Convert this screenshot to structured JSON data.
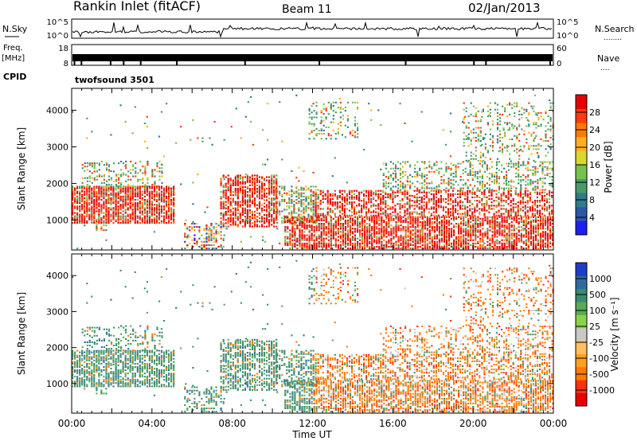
{
  "header": {
    "station": "Rankin Inlet (fitACF)",
    "beam": "Beam 11",
    "date": "02/Jan/2013"
  },
  "side_labels": {
    "nsky": "N.Sky",
    "freq": "Freq.",
    "freq_unit": "[MHz]",
    "cpid": "CPID",
    "nsearch": "N.Search",
    "nsearch_dots": "........",
    "nave": "Nave",
    "nave_dots": "...."
  },
  "cpid_value": "twofsound 3501",
  "chart_data": [
    {
      "type": "line",
      "name": "N.Sky / N.Search",
      "y_ticks_left": [
        "10^5",
        "10^0"
      ],
      "y_ticks_right": [
        "10^5",
        "10^0"
      ]
    },
    {
      "type": "line",
      "name": "Freq / Nave",
      "y_ticks_left": [
        "18",
        "8"
      ],
      "y_ticks_right": [
        "60",
        "0"
      ]
    },
    {
      "type": "heatmap",
      "quantity": "Power",
      "ylabel": "Slant Range [km]",
      "ylim": [
        180,
        4600
      ],
      "y_ticks": [
        1000,
        2000,
        3000,
        4000
      ],
      "colorbar_label": "Power [dB]",
      "colorbar_ticks": [
        "4",
        "8",
        "12",
        "16",
        "20",
        "24",
        "28"
      ],
      "colorbar_colors": [
        "#1e1ef0",
        "#2c56a8",
        "#2e7c8a",
        "#4a9a6a",
        "#7ac050",
        "#d8d830",
        "#ffb020",
        "#ff7a00",
        "#ff3a10",
        "#e80000"
      ],
      "data_extent": "all day"
    },
    {
      "type": "heatmap",
      "quantity": "Velocity",
      "ylabel": "Slant Range [km]",
      "ylim": [
        180,
        4600
      ],
      "y_ticks": [
        1000,
        2000,
        3000,
        4000
      ],
      "colorbar_label": "Velocity [m s⁻¹]",
      "colorbar_ticks": [
        "1000",
        "500",
        "100",
        "25",
        "-25",
        "-100",
        "-500",
        "-1000"
      ],
      "colorbar_colors": [
        "#1e3cc8",
        "#2e6aa0",
        "#3a8c6e",
        "#5aa85a",
        "#8cd24a",
        "#c8c8c8",
        "#ffc060",
        "#ffa020",
        "#ff7a00",
        "#ff3010",
        "#e80000"
      ],
      "data_extent": "all day"
    }
  ],
  "x_axis": {
    "label": "Time UT",
    "ticks": [
      "00:00",
      "04:00",
      "08:00",
      "12:00",
      "16:00",
      "20:00",
      "00:00"
    ],
    "range_hours": [
      0,
      24
    ]
  }
}
